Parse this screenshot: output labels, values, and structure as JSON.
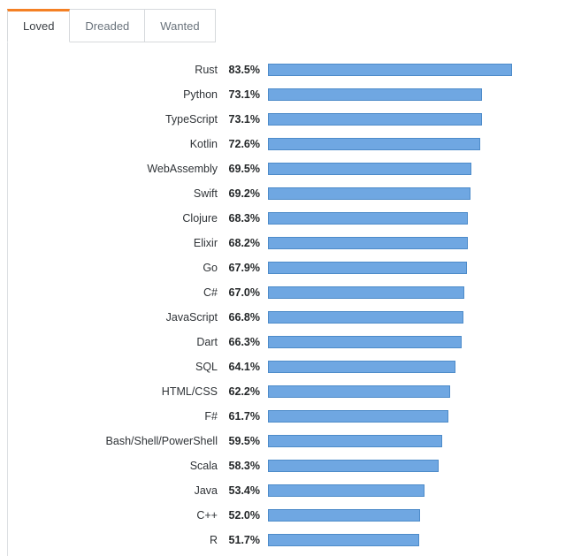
{
  "tabs": [
    {
      "label": "Loved",
      "active": true
    },
    {
      "label": "Dreaded",
      "active": false
    },
    {
      "label": "Wanted",
      "active": false
    }
  ],
  "colors": {
    "accent_orange": "#f48024",
    "bar_fill": "#6fa7e2",
    "bar_border": "#4d8bc9",
    "tab_border": "#d6d9dc",
    "label_text": "#2f3337"
  },
  "chart_data": {
    "type": "bar",
    "orientation": "horizontal",
    "title": "Loved",
    "xlabel": "",
    "ylabel": "",
    "xlim": [
      0,
      100
    ],
    "grid": false,
    "value_suffix": "%",
    "categories": [
      "Rust",
      "Python",
      "TypeScript",
      "Kotlin",
      "WebAssembly",
      "Swift",
      "Clojure",
      "Elixir",
      "Go",
      "C#",
      "JavaScript",
      "Dart",
      "SQL",
      "HTML/CSS",
      "F#",
      "Bash/Shell/PowerShell",
      "Scala",
      "Java",
      "C++",
      "R"
    ],
    "values": [
      83.5,
      73.1,
      73.1,
      72.6,
      69.5,
      69.2,
      68.3,
      68.2,
      67.9,
      67.0,
      66.8,
      66.3,
      64.1,
      62.2,
      61.7,
      59.5,
      58.3,
      53.4,
      52.0,
      51.7
    ]
  }
}
